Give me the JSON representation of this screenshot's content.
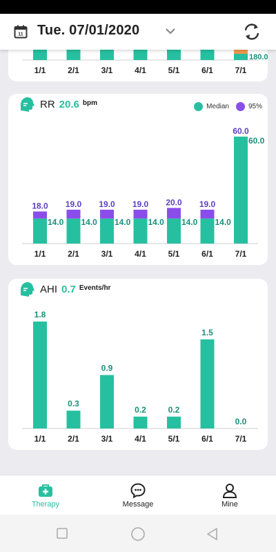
{
  "header": {
    "date": "Tue. 07/01/2020",
    "icons": [
      "calendar-icon",
      "chevron-down-icon",
      "refresh-icon"
    ]
  },
  "colors": {
    "median": "#26c0a0",
    "p95": "#8a4dea",
    "accent": "#26c0a0",
    "orange": "#f2994a",
    "label_purple": "#5b3fc4"
  },
  "top_card": {
    "categories": [
      "1/1",
      "2/1",
      "3/1",
      "4/1",
      "5/1",
      "6/1",
      "7/1"
    ],
    "partial_value_label": "180.0"
  },
  "rr": {
    "name": "RR",
    "value": "20.6",
    "unit": "bpm",
    "legend": {
      "median": "Median",
      "p95": "95%"
    }
  },
  "ahi": {
    "name": "AHI",
    "value": "0.7",
    "unit": "Events/hr"
  },
  "nav": {
    "therapy": "Therapy",
    "message": "Message",
    "mine": "Mine"
  },
  "chart_data": [
    {
      "type": "bar",
      "title": "RR",
      "categories": [
        "1/1",
        "2/1",
        "3/1",
        "4/1",
        "5/1",
        "6/1",
        "7/1"
      ],
      "series": [
        {
          "name": "Median",
          "values": [
            14.0,
            14.0,
            14.0,
            14.0,
            14.0,
            14.0,
            60.0
          ]
        },
        {
          "name": "95%",
          "values": [
            18.0,
            19.0,
            19.0,
            19.0,
            20.0,
            19.0,
            60.0
          ]
        }
      ],
      "labels_median": [
        "14.0",
        "14.0",
        "14.0",
        "14.0",
        "14.0",
        "14.0",
        "60.0"
      ],
      "labels_p95": [
        "18.0",
        "19.0",
        "19.0",
        "19.0",
        "20.0",
        "19.0",
        "60.0"
      ],
      "ylim": [
        0,
        60
      ]
    },
    {
      "type": "bar",
      "title": "AHI",
      "categories": [
        "1/1",
        "2/1",
        "3/1",
        "4/1",
        "5/1",
        "6/1",
        "7/1"
      ],
      "values": [
        1.8,
        0.3,
        0.9,
        0.2,
        0.2,
        1.5,
        0.0
      ],
      "labels": [
        "1.8",
        "0.3",
        "0.9",
        "0.2",
        "0.2",
        "1.5",
        "0.0"
      ],
      "ylim": [
        0,
        1.8
      ]
    }
  ]
}
